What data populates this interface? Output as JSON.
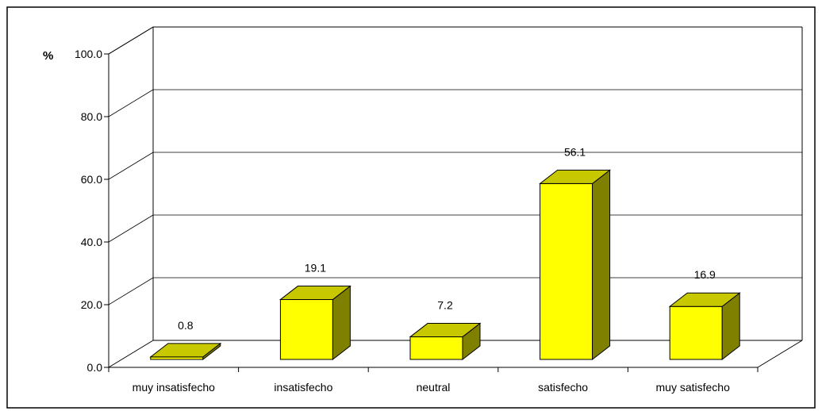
{
  "chart_data": {
    "type": "bar",
    "unit_label": "%",
    "categories": [
      "muy insatisfecho",
      "insatisfecho",
      "neutral",
      "satisfecho",
      "muy satisfecho"
    ],
    "values": [
      0.8,
      19.1,
      7.2,
      56.1,
      16.9
    ],
    "value_labels": [
      "0.8",
      "19.1",
      "7.2",
      "56.1",
      "16.9"
    ],
    "ylim": [
      0,
      100
    ],
    "yticks": [
      "0.0",
      "20.0",
      "40.0",
      "60.0",
      "80.0",
      "100.0"
    ],
    "grid": true,
    "legend": "none",
    "bar_color": "#FFFF00",
    "bar_side_color": "#808000",
    "bar_top_color": "#C8C800"
  }
}
